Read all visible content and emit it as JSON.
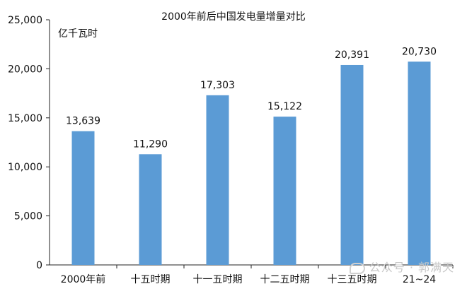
{
  "chart_data": {
    "type": "bar",
    "title": "2000年前后中国发电量增量对比",
    "unit_label": "亿千瓦时",
    "categories": [
      "2000年前",
      "十五时期",
      "十一五时期",
      "十二五时期",
      "十三五时期",
      "21~24"
    ],
    "values": [
      13639,
      11290,
      17303,
      15122,
      20391,
      20730
    ],
    "value_labels": [
      "13,639",
      "11,290",
      "17,303",
      "15,122",
      "20,391",
      "20,730"
    ],
    "ylim": [
      0,
      25000
    ],
    "yticks": [
      0,
      5000,
      10000,
      15000,
      20000,
      25000
    ],
    "ytick_labels": [
      "0",
      "5,000",
      "10,000",
      "15,000",
      "20,000",
      "25,000"
    ],
    "bar_color": "#5b9bd5",
    "grid": false,
    "legend": "none"
  },
  "watermark": {
    "text": "公众号 · 郭满天",
    "color": "#c8c8c8"
  }
}
